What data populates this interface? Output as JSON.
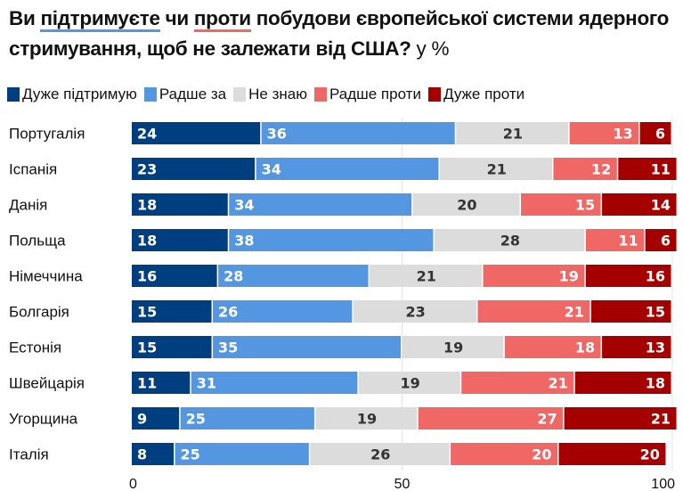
{
  "title": {
    "part1": "Ви ",
    "highlight1": "підтримуєте",
    "part2": " чи ",
    "highlight2": "проти",
    "part3": " побудови європейської системи ядерного стримування, щоб не залежати від США?",
    "unit": " у %"
  },
  "chart_data": {
    "type": "bar",
    "orientation": "horizontal",
    "stacked": true,
    "categories": [
      "Португалія",
      "Іспанія",
      "Данія",
      "Польща",
      "Німеччина",
      "Болгарія",
      "Естонія",
      "Швейцарія",
      "Угорщина",
      "Італія"
    ],
    "series": [
      {
        "name": "Дуже підтримую",
        "color": "#003f7f",
        "label_color": "#ffffff",
        "values": [
          24,
          23,
          18,
          18,
          16,
          15,
          15,
          11,
          9,
          8
        ]
      },
      {
        "name": "Радше за",
        "color": "#5596e0",
        "label_color": "#ffffff",
        "values": [
          36,
          34,
          34,
          38,
          28,
          26,
          35,
          31,
          25,
          25
        ]
      },
      {
        "name": "Не знаю",
        "color": "#dcdcdc",
        "label_color": "#333333",
        "values": [
          21,
          21,
          20,
          28,
          21,
          23,
          19,
          19,
          19,
          26
        ]
      },
      {
        "name": "Радше проти",
        "color": "#f06866",
        "label_color": "#ffffff",
        "values": [
          13,
          12,
          15,
          11,
          19,
          21,
          18,
          21,
          27,
          20
        ]
      },
      {
        "name": "Дуже проти",
        "color": "#a50000",
        "label_color": "#ffffff",
        "values": [
          6,
          11,
          14,
          6,
          16,
          15,
          13,
          18,
          21,
          20
        ]
      }
    ],
    "xlim": [
      0,
      100
    ],
    "xticks": [
      "0",
      "50",
      "100"
    ],
    "grid": true,
    "legend": "top"
  }
}
